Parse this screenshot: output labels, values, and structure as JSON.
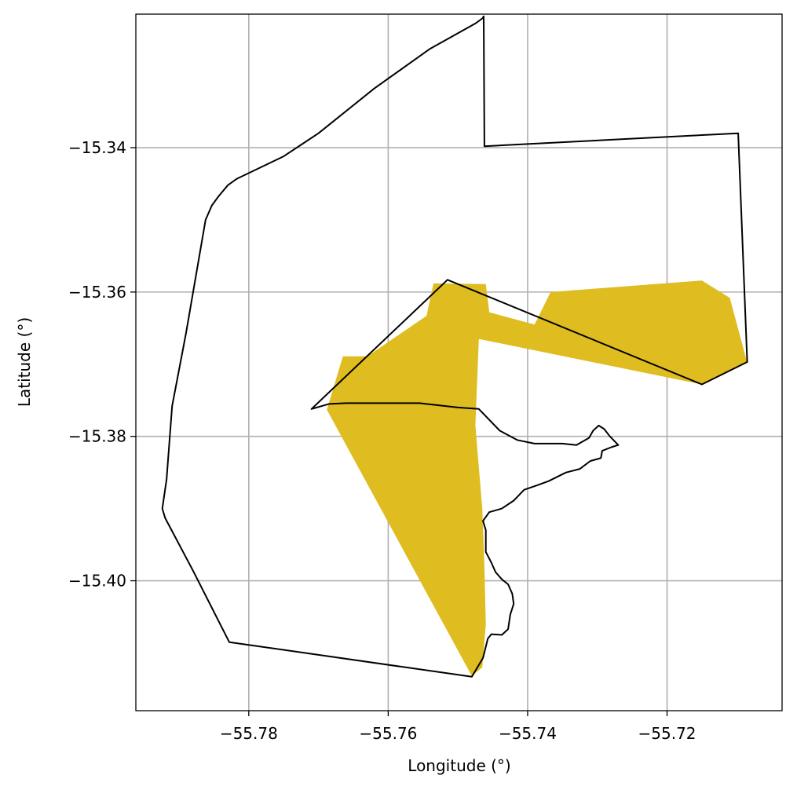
{
  "chart_data": {
    "type": "map",
    "xlabel": "Longitude (°)",
    "ylabel": "Latitude (°)",
    "xlim": [
      -55.7962,
      -55.7035
    ],
    "ylim": [
      -15.418,
      -15.3215
    ],
    "grid": true,
    "x_ticks": [
      -55.78,
      -55.76,
      -55.74,
      -55.72
    ],
    "x_tick_labels": [
      "−55.78",
      "−55.76",
      "−55.74",
      "−55.72"
    ],
    "y_ticks": [
      -15.34,
      -15.36,
      -15.38,
      -15.4
    ],
    "y_tick_labels": [
      "−15.34",
      "−15.36",
      "−15.38",
      "−15.40"
    ],
    "colors": {
      "fill": "#dfbc20",
      "outline": "#000000",
      "grid": "#b0b0b0"
    },
    "filled_regions": [
      {
        "coords": [
          [
            -55.7688,
            -15.3763
          ],
          [
            -55.7665,
            -15.3689
          ],
          [
            -55.763,
            -15.3689
          ],
          [
            -55.7545,
            -15.3633
          ],
          [
            -55.7535,
            -15.3588
          ],
          [
            -55.746,
            -15.3589
          ],
          [
            -55.7455,
            -15.3628
          ],
          [
            -55.739,
            -15.3645
          ],
          [
            -55.7367,
            -15.36
          ],
          [
            -55.715,
            -15.3584
          ],
          [
            -55.711,
            -15.3608
          ],
          [
            -55.7085,
            -15.3698
          ],
          [
            -55.715,
            -15.3728
          ],
          [
            -55.747,
            -15.3665
          ],
          [
            -55.7475,
            -15.3785
          ],
          [
            -55.7465,
            -15.39
          ],
          [
            -55.7462,
            -15.398
          ],
          [
            -55.746,
            -15.406
          ],
          [
            -55.7465,
            -15.412
          ],
          [
            -55.748,
            -15.4132
          ]
        ]
      }
    ],
    "outlines": [
      {
        "name": "",
        "coords": [
          [
            -55.7463,
            -15.3218
          ],
          [
            -55.7465,
            -15.3221
          ],
          [
            -55.7475,
            -15.3228
          ],
          [
            -55.754,
            -15.3263
          ],
          [
            -55.762,
            -15.3318
          ],
          [
            -55.77,
            -15.338
          ],
          [
            -55.775,
            -15.3412
          ],
          [
            -55.7817,
            -15.3443
          ],
          [
            -55.783,
            -15.3452
          ],
          [
            -55.7843,
            -15.3467
          ],
          [
            -55.7853,
            -15.348
          ],
          [
            -55.7862,
            -15.35
          ],
          [
            -55.789,
            -15.3657
          ],
          [
            -55.791,
            -15.3758
          ],
          [
            -55.7918,
            -15.386
          ],
          [
            -55.7924,
            -15.39
          ],
          [
            -55.792,
            -15.3913
          ],
          [
            -55.788,
            -15.3986
          ],
          [
            -55.7828,
            -15.4085
          ],
          [
            -55.748,
            -15.4133
          ],
          [
            -55.7464,
            -15.4107
          ],
          [
            -55.7457,
            -15.408
          ],
          [
            -55.7452,
            -15.4074
          ],
          [
            -55.7437,
            -15.4075
          ],
          [
            -55.7428,
            -15.4067
          ],
          [
            -55.7425,
            -15.4047
          ],
          [
            -55.742,
            -15.4032
          ],
          [
            -55.7422,
            -15.4018
          ],
          [
            -55.7428,
            -15.4005
          ],
          [
            -55.7437,
            -15.3998
          ],
          [
            -55.7446,
            -15.3988
          ],
          [
            -55.7452,
            -15.3975
          ],
          [
            -55.746,
            -15.396
          ],
          [
            -55.746,
            -15.393
          ],
          [
            -55.7464,
            -15.3917
          ],
          [
            -55.7455,
            -15.3905
          ],
          [
            -55.7437,
            -15.39
          ],
          [
            -55.742,
            -15.3889
          ],
          [
            -55.7405,
            -15.3874
          ],
          [
            -55.7387,
            -15.3868
          ],
          [
            -55.737,
            -15.3862
          ],
          [
            -55.7345,
            -15.385
          ],
          [
            -55.7325,
            -15.3845
          ],
          [
            -55.731,
            -15.3834
          ],
          [
            -55.7295,
            -15.383
          ],
          [
            -55.7293,
            -15.382
          ],
          [
            -55.728,
            -15.3815
          ],
          [
            -55.727,
            -15.3812
          ],
          [
            -55.7282,
            -15.38
          ],
          [
            -55.729,
            -15.379
          ],
          [
            -55.7298,
            -15.3785
          ],
          [
            -55.7306,
            -15.3792
          ],
          [
            -55.7312,
            -15.3802
          ],
          [
            -55.733,
            -15.3812
          ],
          [
            -55.735,
            -15.381
          ],
          [
            -55.737,
            -15.381
          ],
          [
            -55.739,
            -15.381
          ],
          [
            -55.7415,
            -15.3805
          ],
          [
            -55.744,
            -15.3792
          ],
          [
            -55.747,
            -15.3762
          ],
          [
            -55.75,
            -15.376
          ],
          [
            -55.7555,
            -15.3754
          ],
          [
            -55.76,
            -15.3754
          ],
          [
            -55.766,
            -15.3754
          ],
          [
            -55.7685,
            -15.3755
          ],
          [
            -55.771,
            -15.3762
          ],
          [
            -55.7515,
            -15.3583
          ],
          [
            -55.715,
            -15.3728
          ],
          [
            -55.7085,
            -15.3697
          ],
          [
            -55.7098,
            -15.338
          ],
          [
            -55.7462,
            -15.3398
          ],
          [
            -55.7463,
            -15.3218
          ]
        ]
      }
    ]
  }
}
